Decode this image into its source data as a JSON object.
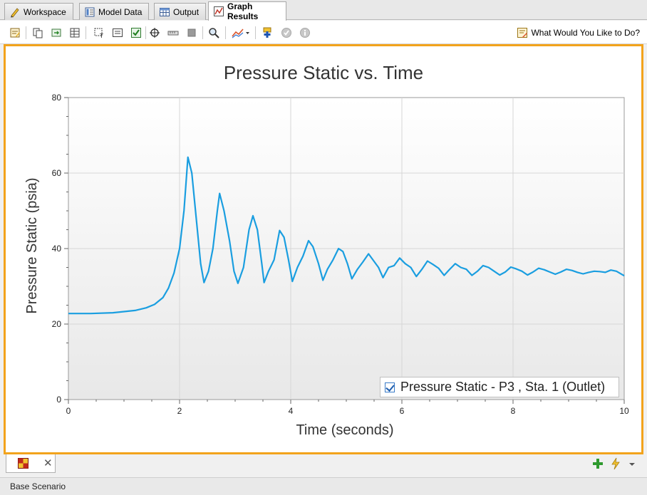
{
  "tabs": [
    {
      "label": "Workspace",
      "icon": "pencil-icon"
    },
    {
      "label": "Model Data",
      "icon": "model-data-icon"
    },
    {
      "label": "Output",
      "icon": "output-table-icon"
    },
    {
      "label": "Graph Results",
      "icon": "graph-icon"
    }
  ],
  "toolbar": {
    "help_label": "What Would You Like to Do?"
  },
  "chart_data": {
    "type": "line",
    "title": "Pressure Static vs. Time",
    "xlabel": "Time (seconds)",
    "ylabel": "Pressure Static (psia)",
    "xlim": [
      0,
      10
    ],
    "ylim": [
      0,
      80
    ],
    "xticks": [
      0,
      2,
      4,
      6,
      8,
      10
    ],
    "yticks": [
      0,
      20,
      40,
      60,
      80
    ],
    "grid": true,
    "legend_position": "bottom-right",
    "series": [
      {
        "name": "Pressure Static - P3 , Sta. 1 (Outlet)",
        "color": "#1a9ee0",
        "x": [
          0,
          0.4,
          0.8,
          1.0,
          1.2,
          1.4,
          1.55,
          1.7,
          1.8,
          1.9,
          2.0,
          2.08,
          2.15,
          2.22,
          2.3,
          2.38,
          2.44,
          2.52,
          2.6,
          2.68,
          2.72,
          2.8,
          2.9,
          2.98,
          3.05,
          3.15,
          3.25,
          3.32,
          3.4,
          3.48,
          3.52,
          3.6,
          3.7,
          3.8,
          3.88,
          3.96,
          4.03,
          4.12,
          4.22,
          4.32,
          4.4,
          4.5,
          4.58,
          4.66,
          4.76,
          4.86,
          4.94,
          5.02,
          5.1,
          5.2,
          5.3,
          5.4,
          5.48,
          5.58,
          5.66,
          5.76,
          5.86,
          5.96,
          6.06,
          6.16,
          6.26,
          6.36,
          6.46,
          6.56,
          6.66,
          6.76,
          6.86,
          6.96,
          7.06,
          7.16,
          7.26,
          7.36,
          7.46,
          7.56,
          7.66,
          7.76,
          7.86,
          7.96,
          8.06,
          8.16,
          8.26,
          8.36,
          8.46,
          8.56,
          8.66,
          8.76,
          8.86,
          8.96,
          9.06,
          9.16,
          9.26,
          9.36,
          9.46,
          9.56,
          9.66,
          9.76,
          9.86,
          10.0
        ],
        "values": [
          22.8,
          22.8,
          23.0,
          23.3,
          23.6,
          24.3,
          25.2,
          27.0,
          29.5,
          33.5,
          40.0,
          50.0,
          64.2,
          60.0,
          48.0,
          36.0,
          31.0,
          34.0,
          40.0,
          50.0,
          54.6,
          50.0,
          42.0,
          34.0,
          30.8,
          35.0,
          45.0,
          48.7,
          45.0,
          36.0,
          31.0,
          34.0,
          37.0,
          44.8,
          43.0,
          37.0,
          31.3,
          35.0,
          38.0,
          42.1,
          40.5,
          36.0,
          31.6,
          34.5,
          37.0,
          40.0,
          39.2,
          36.0,
          32.0,
          34.5,
          36.5,
          38.6,
          37.0,
          35.0,
          32.3,
          35.0,
          35.5,
          37.5,
          36.0,
          35.0,
          32.6,
          34.5,
          36.7,
          35.8,
          34.8,
          32.9,
          34.5,
          36.0,
          35.0,
          34.5,
          32.9,
          34.0,
          35.5,
          35.0,
          34.0,
          33.0,
          33.8,
          35.1,
          34.6,
          34.0,
          33.0,
          33.8,
          34.8,
          34.4,
          33.8,
          33.2,
          33.8,
          34.5,
          34.2,
          33.7,
          33.3,
          33.7,
          34.0,
          33.9,
          33.7,
          34.3,
          34.0,
          32.8
        ]
      }
    ]
  },
  "bottom": {
    "scenario_label": "Base Scenario"
  }
}
